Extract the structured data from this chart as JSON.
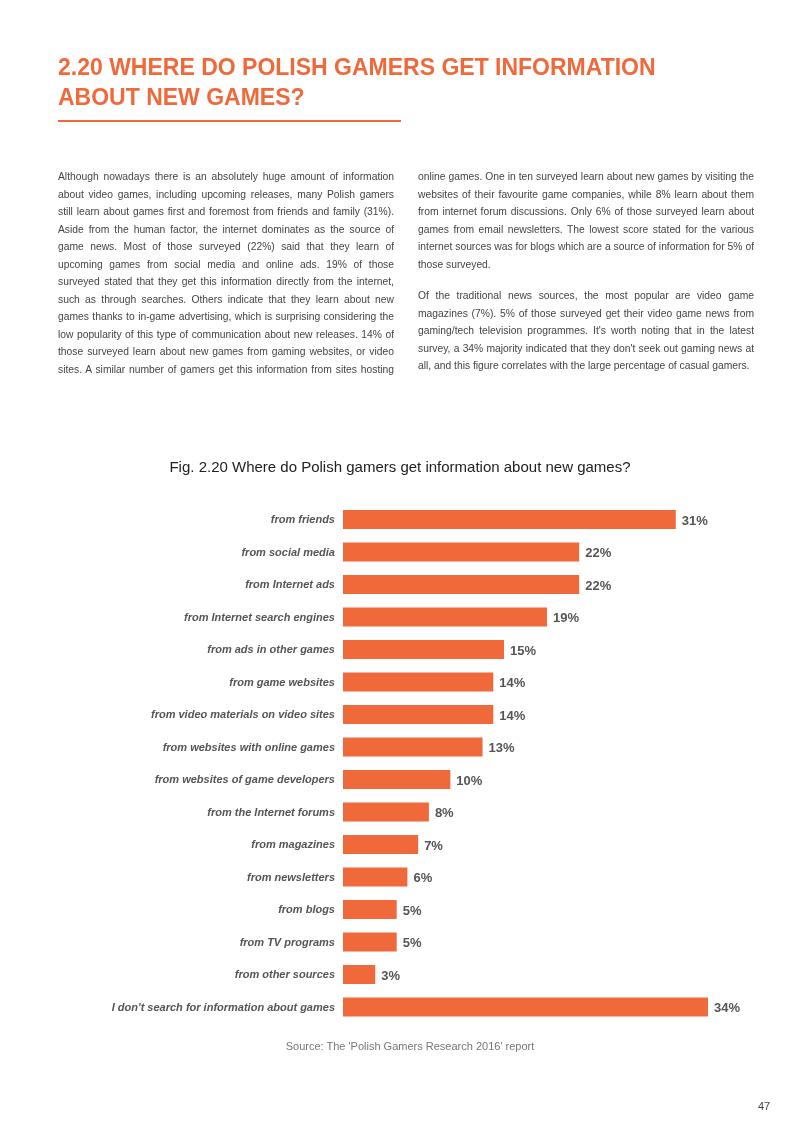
{
  "chart_data": {
    "type": "bar",
    "orientation": "horizontal",
    "title": "2.20 WHERE DO POLISH GAMERS GET INFORMATION ABOUT NEW GAMES?",
    "subtitle": "Fig. 2.20 Where do Polish gamers get information about new games?",
    "categories": [
      "from friends",
      "from social media",
      "from Internet ads",
      "from Internet search engines",
      "from ads in other games",
      "from game websites",
      "from video materials on video sites",
      "from websites with online games",
      "from websites of game developers",
      "from the Internet forums",
      "from magazines",
      "from  newsletters",
      "from blogs",
      "from TV  programs",
      "from other sources",
      "I don't search for information about games"
    ],
    "values": [
      31,
      22,
      22,
      19,
      15,
      14,
      14,
      13,
      10,
      8,
      7,
      6,
      5,
      5,
      3,
      34
    ],
    "value_labels": [
      "31%",
      "22%",
      "22%",
      "19%",
      "15%",
      "14%",
      "14%",
      "13%",
      "10%",
      "8%",
      "7%",
      "6%",
      "5%",
      "5%",
      "3%",
      "34%"
    ],
    "color": "#f0693a",
    "tick_labels": "y",
    "annotations": [
      "Although nowadays there is an absolutely huge amount of information about video games, including upcoming releases, many Polish gamers still learn about games first and foremost from friends and family (31%). Aside from the human factor, the internet dominates as the source of game news. Most of those surveyed (22%) said that they learn of upcoming games from social media and online ads. 19% of those surveyed stated that they get this information directly from the internet, such as through searches. Others indicate that they learn about new games thanks to in-game advertising, which is surprising considering the low popularity of this type of communication about new releases. 14% of those surveyed learn about new games from gaming websites, or video sites. A similar number of gamers get this information from sites hosting online games. One in ten surveyed learn about new games by visiting the websites of their favourite game companies, while 8% learn about them from internet forum discussions. Only 6% of those surveyed learn about games from email newsletters. The lowest score stated for the various internet sources was for blogs which are a source of information for 5% of those surveyed.",
      "Of the traditional news sources, the most popular are video game magazines (7%). 5% of those surveyed get their video game news from gaming/tech television programmes. It's worth noting that in the latest survey, a 34% majority indicated that they don't seek out gaming news at all, and this figure correlates with the large percentage of casual gamers.",
      "Source: The 'Polish Gamers Research 2016' report",
      "47"
    ]
  }
}
